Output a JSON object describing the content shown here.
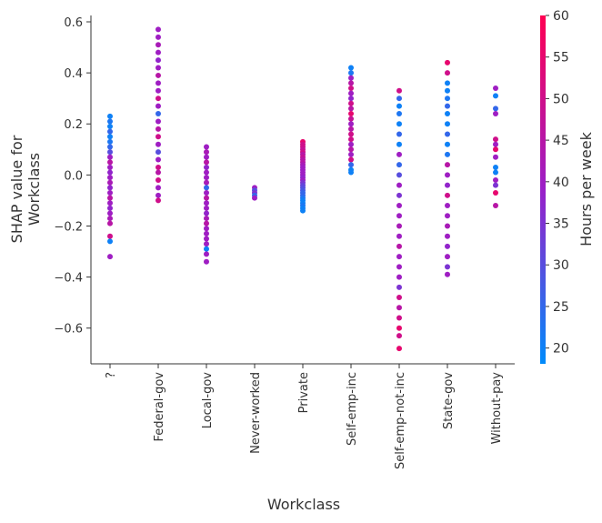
{
  "chart_data": {
    "type": "scatter",
    "xlabel": "Workclass",
    "ylabel": [
      "SHAP value for",
      "Workclass"
    ],
    "categories": [
      "?",
      "Federal-gov",
      "Local-gov",
      "Never-worked",
      "Private",
      "Self-emp-inc",
      "Self-emp-not-inc",
      "State-gov",
      "Without-pay"
    ],
    "ylim": [
      -0.74,
      0.625
    ],
    "yticks": [
      {
        "value": -0.6,
        "label": "−0.6"
      },
      {
        "value": -0.4,
        "label": "−0.4"
      },
      {
        "value": -0.2,
        "label": "−0.2"
      },
      {
        "value": 0,
        "label": "0.0"
      },
      0.2,
      0.4,
      0.6
    ],
    "colormap": [
      "#008bfb",
      "#9a1fc8",
      "#ff0052"
    ],
    "colorbar": {
      "label": "Hours per week",
      "lim": [
        18.1,
        60
      ],
      "ticks": [
        20,
        25,
        30,
        35,
        40,
        45,
        50,
        55,
        60
      ]
    },
    "groups": [
      {
        "values": [
          0.23,
          0.21,
          0.19,
          0.17,
          0.15,
          0.13,
          0.11,
          0.09,
          0.07,
          0.05,
          0.03,
          0.01,
          -0.01,
          -0.03,
          -0.05,
          -0.07,
          -0.09,
          -0.11,
          -0.13,
          -0.15,
          -0.17,
          -0.19,
          -0.24,
          -0.26,
          -0.32
        ],
        "hours": [
          20,
          22,
          20,
          25,
          20,
          22,
          25,
          30,
          40,
          45,
          40,
          38,
          40,
          42,
          38,
          40,
          45,
          40,
          38,
          40,
          42,
          45,
          50,
          20,
          40
        ]
      },
      {
        "values": [
          0.57,
          0.54,
          0.51,
          0.48,
          0.45,
          0.42,
          0.39,
          0.36,
          0.33,
          0.3,
          0.27,
          0.24,
          0.21,
          0.18,
          0.15,
          0.12,
          0.09,
          0.06,
          0.03,
          0.01,
          -0.02,
          -0.05,
          -0.08,
          -0.1
        ],
        "hours": [
          40,
          40,
          42,
          40,
          38,
          40,
          45,
          40,
          40,
          50,
          40,
          25,
          40,
          45,
          50,
          40,
          30,
          40,
          50,
          45,
          50,
          40,
          40,
          50
        ]
      },
      {
        "values": [
          0.11,
          0.09,
          0.07,
          0.05,
          0.03,
          0.01,
          -0.01,
          -0.03,
          -0.05,
          -0.07,
          -0.09,
          -0.11,
          -0.13,
          -0.15,
          -0.17,
          -0.19,
          -0.21,
          -0.23,
          -0.25,
          -0.27,
          -0.29,
          -0.31,
          -0.34
        ],
        "hours": [
          40,
          42,
          40,
          45,
          38,
          40,
          40,
          42,
          25,
          40,
          45,
          40,
          40,
          38,
          42,
          45,
          40,
          40,
          40,
          40,
          20,
          40,
          40
        ]
      },
      {
        "values": [
          -0.05,
          -0.06,
          -0.07,
          -0.08,
          -0.09
        ],
        "hours": [
          40,
          30,
          35,
          25,
          40
        ]
      },
      {
        "values": [
          0.13,
          0.12,
          0.11,
          0.1,
          0.09,
          0.08,
          0.07,
          0.06,
          0.05,
          0.04,
          0.03,
          0.02,
          0.01,
          0,
          -0.01,
          -0.02,
          -0.03,
          -0.04,
          -0.05,
          -0.06,
          -0.07,
          -0.08,
          -0.09,
          -0.1,
          -0.11,
          -0.12,
          -0.13,
          -0.14
        ],
        "hours": [
          55,
          50,
          50,
          48,
          50,
          45,
          48,
          45,
          45,
          42,
          40,
          40,
          40,
          40,
          38,
          40,
          35,
          32,
          30,
          28,
          25,
          25,
          22,
          20,
          20,
          22,
          20,
          20
        ]
      },
      {
        "values": [
          0.42,
          0.4,
          0.38,
          0.36,
          0.34,
          0.32,
          0.3,
          0.28,
          0.26,
          0.24,
          0.22,
          0.2,
          0.18,
          0.16,
          0.14,
          0.12,
          0.1,
          0.08,
          0.06,
          0.04,
          0.02,
          0.01
        ],
        "hours": [
          20,
          22,
          40,
          45,
          50,
          40,
          38,
          50,
          45,
          55,
          48,
          40,
          45,
          50,
          50,
          40,
          45,
          40,
          50,
          25,
          20,
          20
        ]
      },
      {
        "values": [
          0.33,
          0.3,
          0.27,
          0.24,
          0.2,
          0.16,
          0.12,
          0.08,
          0.04,
          0,
          -0.04,
          -0.08,
          -0.12,
          -0.16,
          -0.2,
          -0.24,
          -0.28,
          -0.32,
          -0.36,
          -0.4,
          -0.44,
          -0.48,
          -0.52,
          -0.56,
          -0.6,
          -0.63,
          -0.68
        ],
        "hours": [
          50,
          25,
          20,
          22,
          20,
          25,
          20,
          40,
          25,
          30,
          40,
          35,
          40,
          40,
          42,
          40,
          45,
          40,
          40,
          40,
          35,
          50,
          45,
          50,
          55,
          50,
          55
        ]
      },
      {
        "values": [
          0.44,
          0.4,
          0.36,
          0.33,
          0.3,
          0.27,
          0.24,
          0.2,
          0.16,
          0.12,
          0.08,
          0.04,
          0,
          -0.04,
          -0.08,
          -0.12,
          -0.16,
          -0.2,
          -0.24,
          -0.28,
          -0.32,
          -0.36,
          -0.39
        ],
        "hours": [
          55,
          50,
          20,
          20,
          22,
          25,
          20,
          20,
          25,
          20,
          22,
          45,
          40,
          38,
          50,
          40,
          40,
          42,
          40,
          38,
          40,
          35,
          40
        ]
      },
      {
        "values": [
          0.34,
          0.31,
          0.26,
          0.24,
          0.14,
          0.12,
          0.1,
          0.07,
          0.03,
          0.01,
          -0.02,
          -0.04,
          -0.07,
          -0.12
        ],
        "hours": [
          40,
          20,
          25,
          40,
          50,
          40,
          55,
          40,
          20,
          20,
          40,
          35,
          55,
          45
        ]
      }
    ]
  }
}
